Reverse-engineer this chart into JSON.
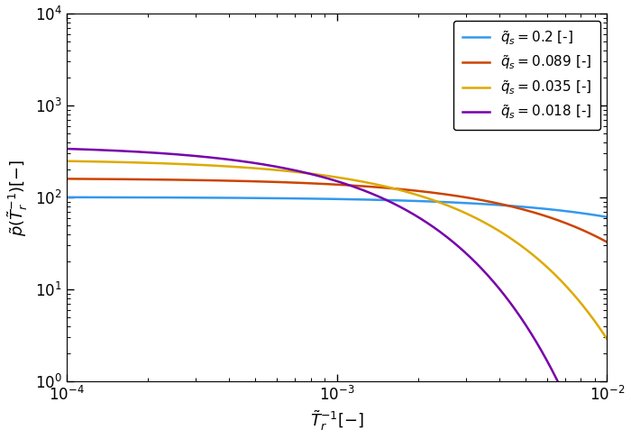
{
  "title": "",
  "xlabel": "$\\tilde{T}_r^{-1}[-]$",
  "ylabel": "$\\tilde{p}(\\tilde{T}_r^{-1})[-]$",
  "xlim": [
    0.0001,
    0.01
  ],
  "ylim": [
    1.0,
    10000.0
  ],
  "series": [
    {
      "qs": 0.2,
      "label": "$\\tilde{q}_s = 0.2$ [-]",
      "color": "#3399EE",
      "A": 101,
      "lambda": 50
    },
    {
      "qs": 0.089,
      "label": "$\\tilde{q}_s = 0.089$ [-]",
      "color": "#CC4400",
      "A": 162,
      "lambda": 160
    },
    {
      "qs": 0.035,
      "label": "$\\tilde{q}_s = 0.035$ [-]",
      "color": "#DDAA00",
      "A": 260,
      "lambda": 450
    },
    {
      "qs": 0.018,
      "label": "$\\tilde{q}_s = 0.018$ [-]",
      "color": "#7700AA",
      "A": 370,
      "lambda": 900
    }
  ],
  "figsize": [
    7.0,
    4.87
  ],
  "dpi": 100,
  "tick_labelsize": 12,
  "legend_fontsize": 11
}
